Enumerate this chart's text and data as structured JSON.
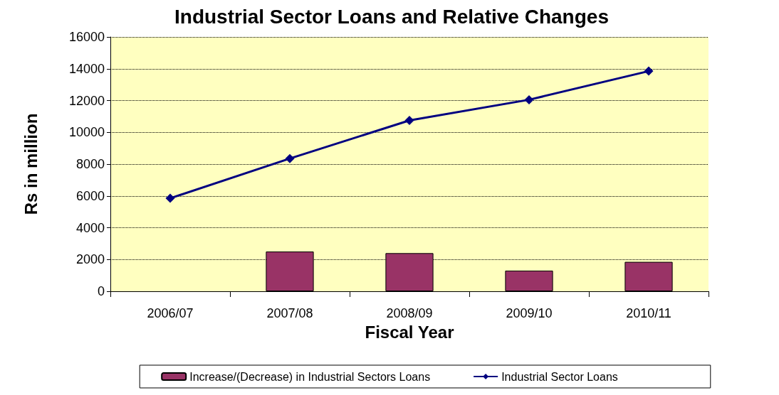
{
  "chart_data": {
    "type": "bar",
    "title": "Industrial Sector Loans and Relative Changes",
    "xlabel": "Fiscal Year",
    "ylabel": "Rs in million",
    "categories": [
      "2006/07",
      "2007/08",
      "2008/09",
      "2009/10",
      "2010/11"
    ],
    "series": [
      {
        "name": "Increase/(Decrease) in Industrial Sectors Loans",
        "color": "#993366",
        "values": [
          null,
          2500,
          2400,
          1300,
          1850
        ]
      },
      {
        "name": "Industrial Sector Loans",
        "type": "line",
        "color": "#000080",
        "values": [
          5850,
          8350,
          10750,
          12050,
          13850
        ],
        "marker": "diamond"
      }
    ],
    "ylim": [
      0,
      16000
    ],
    "yticks": [
      0,
      2000,
      4000,
      6000,
      8000,
      10000,
      12000,
      14000,
      16000
    ],
    "grid": "y",
    "legend": "bottom"
  }
}
